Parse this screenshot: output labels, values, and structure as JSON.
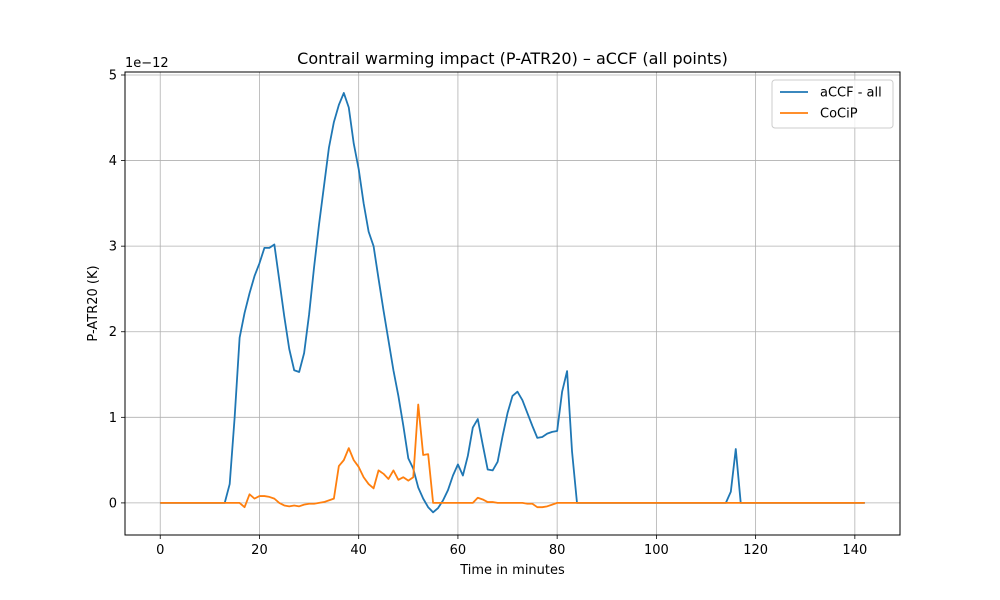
{
  "chart_data": {
    "type": "line",
    "title": "Contrail warming impact (P-ATR20) – aCCF (all points)",
    "xlabel": "Time in minutes",
    "ylabel": "P-ATR20 (K)",
    "y_offset_text": "1e−12",
    "xlim": [
      -7.1,
      149.1
    ],
    "ylim": [
      -0.375,
      5.035
    ],
    "x_ticks": [
      0,
      20,
      40,
      60,
      80,
      100,
      120,
      140
    ],
    "y_ticks": [
      0,
      1,
      2,
      3,
      4,
      5
    ],
    "grid": true,
    "legend_position": "top-right",
    "series": [
      {
        "name": "aCCF - all",
        "color": "#1f77b4",
        "x": [
          0,
          13,
          14,
          15,
          16,
          17,
          18,
          19,
          20,
          21,
          22,
          23,
          24,
          25,
          26,
          27,
          28,
          29,
          30,
          31,
          32,
          33,
          34,
          35,
          36,
          37,
          38,
          39,
          40,
          41,
          42,
          43,
          44,
          45,
          46,
          47,
          48,
          49,
          50,
          51,
          52,
          53,
          54,
          55,
          56,
          57,
          58,
          59,
          60,
          61,
          62,
          63,
          64,
          65,
          66,
          67,
          68,
          69,
          70,
          71,
          72,
          73,
          74,
          75,
          76,
          77,
          78,
          79,
          80,
          81,
          82,
          83,
          84,
          85,
          100,
          114,
          115,
          116,
          117,
          118,
          142
        ],
        "y": [
          0,
          0,
          0.22,
          1.0,
          1.93,
          2.22,
          2.45,
          2.65,
          2.8,
          2.98,
          2.98,
          3.02,
          2.6,
          2.18,
          1.8,
          1.55,
          1.53,
          1.75,
          2.2,
          2.75,
          3.25,
          3.7,
          4.15,
          4.45,
          4.65,
          4.79,
          4.62,
          4.2,
          3.9,
          3.5,
          3.17,
          3.0,
          2.62,
          2.25,
          1.9,
          1.55,
          1.25,
          0.9,
          0.52,
          0.4,
          0.18,
          0.05,
          -0.05,
          -0.11,
          -0.06,
          0.03,
          0.15,
          0.32,
          0.45,
          0.32,
          0.55,
          0.88,
          0.98,
          0.68,
          0.39,
          0.38,
          0.48,
          0.78,
          1.05,
          1.25,
          1.3,
          1.2,
          1.05,
          0.9,
          0.76,
          0.77,
          0.81,
          0.83,
          0.84,
          1.3,
          1.54,
          0.6,
          0,
          0,
          0,
          0,
          0.13,
          0.63,
          0,
          0,
          0
        ]
      },
      {
        "name": "CoCiP",
        "color": "#ff7f0e",
        "x": [
          0,
          12,
          16,
          17,
          18,
          19,
          20,
          21,
          22,
          23,
          24,
          25,
          26,
          27,
          28,
          29,
          30,
          31,
          32,
          33,
          34,
          35,
          36,
          37,
          38,
          39,
          40,
          41,
          42,
          43,
          44,
          45,
          46,
          47,
          48,
          49,
          50,
          51,
          52,
          53,
          54,
          55,
          56,
          60,
          63,
          64,
          65,
          66,
          67,
          68,
          70,
          72,
          73,
          74,
          75,
          76,
          77,
          78,
          79,
          80,
          100,
          142
        ],
        "y": [
          0,
          0,
          0,
          -0.05,
          0.1,
          0.05,
          0.08,
          0.08,
          0.07,
          0.05,
          0.0,
          -0.03,
          -0.04,
          -0.03,
          -0.04,
          -0.02,
          -0.01,
          -0.01,
          0.0,
          0.01,
          0.03,
          0.05,
          0.43,
          0.5,
          0.64,
          0.5,
          0.42,
          0.3,
          0.22,
          0.17,
          0.38,
          0.34,
          0.28,
          0.38,
          0.27,
          0.3,
          0.26,
          0.3,
          1.15,
          0.56,
          0.57,
          0.0,
          0.0,
          0.0,
          0.0,
          0.06,
          0.04,
          0.01,
          0.01,
          0.0,
          0.0,
          0.0,
          0.0,
          -0.01,
          -0.01,
          -0.05,
          -0.05,
          -0.04,
          -0.02,
          0.0,
          0.0,
          0.0
        ]
      }
    ]
  }
}
